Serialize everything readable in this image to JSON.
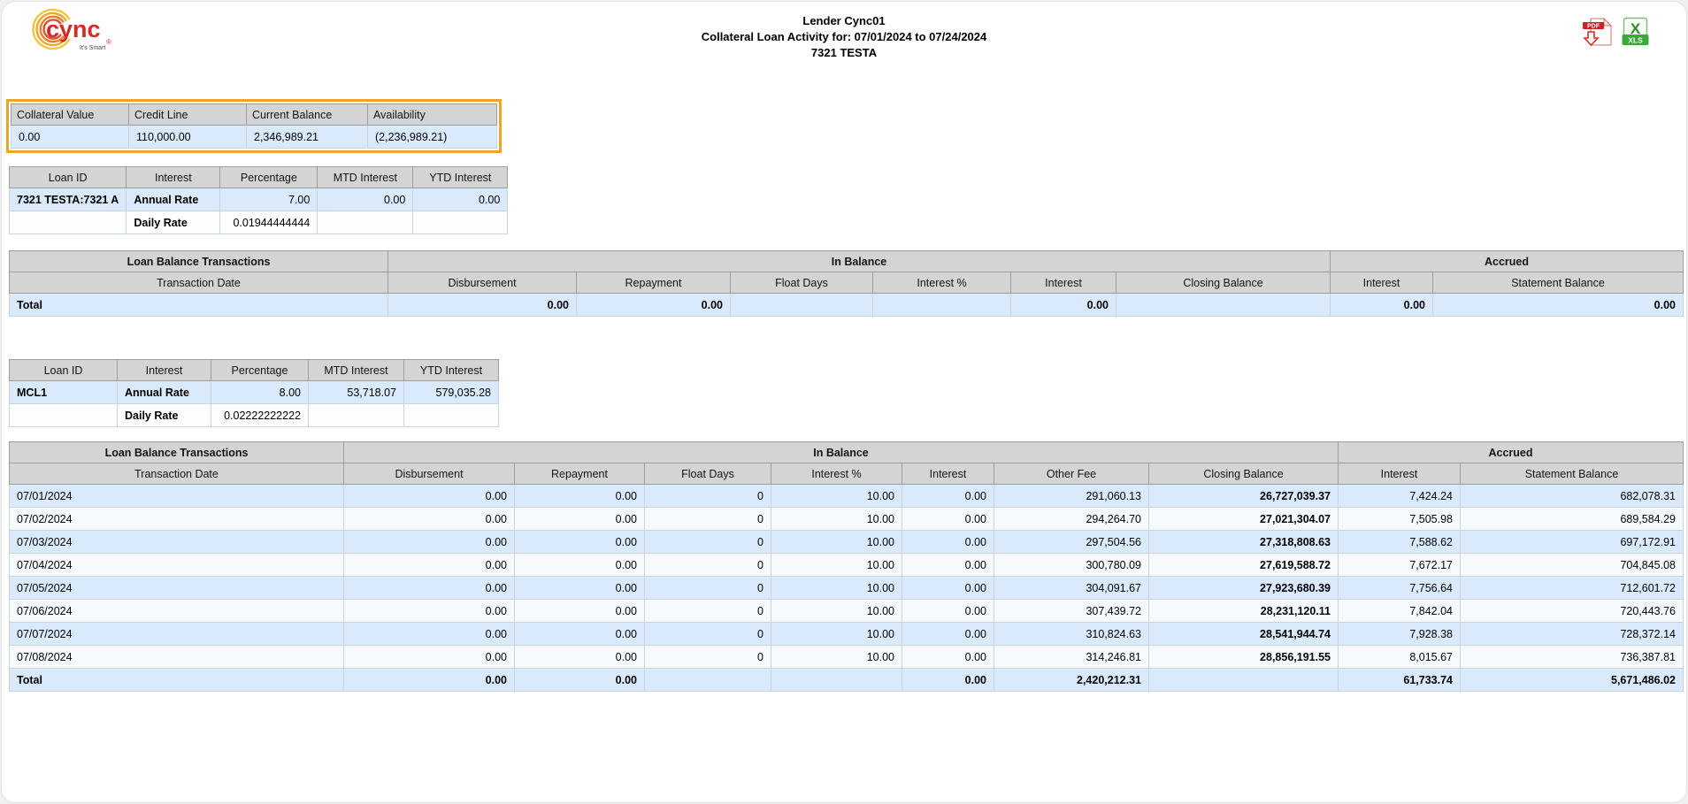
{
  "header": {
    "logo_text": "cync",
    "logo_tagline": "It's Smart",
    "title_line1": "Lender Cync01",
    "title_line2": "Collateral Loan Activity for: 07/01/2024 to 07/24/2024",
    "title_line3": "7321 TESTA",
    "export": {
      "pdf_label": "PDF",
      "xls_label": "XLS"
    }
  },
  "colors": {
    "highlight_border": "#eea32b",
    "header_gray": "#d4d4d4",
    "row_blue": "#d9eafc",
    "logo_red": "#d52b27"
  },
  "summary_table": {
    "columns": [
      "Collateral Value",
      "Credit Line",
      "Current Balance",
      "Availability"
    ],
    "values": [
      "0.00",
      "110,000.00",
      "2,346,989.21",
      "(2,236,989.21)"
    ]
  },
  "loan_tables": [
    {
      "columns": [
        "Loan ID",
        "Interest",
        "Percentage",
        "MTD Interest",
        "YTD Interest"
      ],
      "rows": [
        [
          "7321 TESTA:7321 A",
          "Annual Rate",
          "7.00",
          "0.00",
          "0.00"
        ],
        [
          "",
          "Daily Rate",
          "0.01944444444",
          "",
          ""
        ]
      ]
    },
    {
      "columns": [
        "Loan ID",
        "Interest",
        "Percentage",
        "MTD Interest",
        "YTD Interest"
      ],
      "rows": [
        [
          "MCL1",
          "Annual Rate",
          "8.00",
          "53,718.07",
          "579,035.28"
        ],
        [
          "",
          "Daily Rate",
          "0.02222222222",
          "",
          ""
        ]
      ]
    }
  ],
  "transaction_tables": [
    {
      "groups": [
        {
          "label": "Loan Balance Transactions",
          "span": 1
        },
        {
          "label": "In Balance",
          "span": 6
        },
        {
          "label": "Accrued",
          "span": 2
        }
      ],
      "columns": [
        "Transaction Date",
        "Disbursement",
        "Repayment",
        "Float Days",
        "Interest %",
        "Interest",
        "Closing Balance",
        "Interest",
        "Statement Balance"
      ],
      "rows": [],
      "total_row": [
        "Total",
        "0.00",
        "0.00",
        "",
        "",
        "0.00",
        "",
        "0.00",
        "0.00"
      ],
      "bold_col": -1
    },
    {
      "groups": [
        {
          "label": "Loan Balance Transactions",
          "span": 1
        },
        {
          "label": "In Balance",
          "span": 7
        },
        {
          "label": "Accrued",
          "span": 2
        }
      ],
      "columns": [
        "Transaction Date",
        "Disbursement",
        "Repayment",
        "Float Days",
        "Interest %",
        "Interest",
        "Other Fee",
        "Closing Balance",
        "Interest",
        "Statement Balance"
      ],
      "rows": [
        [
          "07/01/2024",
          "0.00",
          "0.00",
          "0",
          "10.00",
          "0.00",
          "291,060.13",
          "26,727,039.37",
          "7,424.24",
          "682,078.31"
        ],
        [
          "07/02/2024",
          "0.00",
          "0.00",
          "0",
          "10.00",
          "0.00",
          "294,264.70",
          "27,021,304.07",
          "7,505.98",
          "689,584.29"
        ],
        [
          "07/03/2024",
          "0.00",
          "0.00",
          "0",
          "10.00",
          "0.00",
          "297,504.56",
          "27,318,808.63",
          "7,588.62",
          "697,172.91"
        ],
        [
          "07/04/2024",
          "0.00",
          "0.00",
          "0",
          "10.00",
          "0.00",
          "300,780.09",
          "27,619,588.72",
          "7,672.17",
          "704,845.08"
        ],
        [
          "07/05/2024",
          "0.00",
          "0.00",
          "0",
          "10.00",
          "0.00",
          "304,091.67",
          "27,923,680.39",
          "7,756.64",
          "712,601.72"
        ],
        [
          "07/06/2024",
          "0.00",
          "0.00",
          "0",
          "10.00",
          "0.00",
          "307,439.72",
          "28,231,120.11",
          "7,842.04",
          "720,443.76"
        ],
        [
          "07/07/2024",
          "0.00",
          "0.00",
          "0",
          "10.00",
          "0.00",
          "310,824.63",
          "28,541,944.74",
          "7,928.38",
          "728,372.14"
        ],
        [
          "07/08/2024",
          "0.00",
          "0.00",
          "0",
          "10.00",
          "0.00",
          "314,246.81",
          "28,856,191.55",
          "8,015.67",
          "736,387.81"
        ]
      ],
      "total_row": [
        "Total",
        "0.00",
        "0.00",
        "",
        "",
        "0.00",
        "2,420,212.31",
        "",
        "61,733.74",
        "5,671,486.02"
      ],
      "bold_col": 7
    }
  ]
}
